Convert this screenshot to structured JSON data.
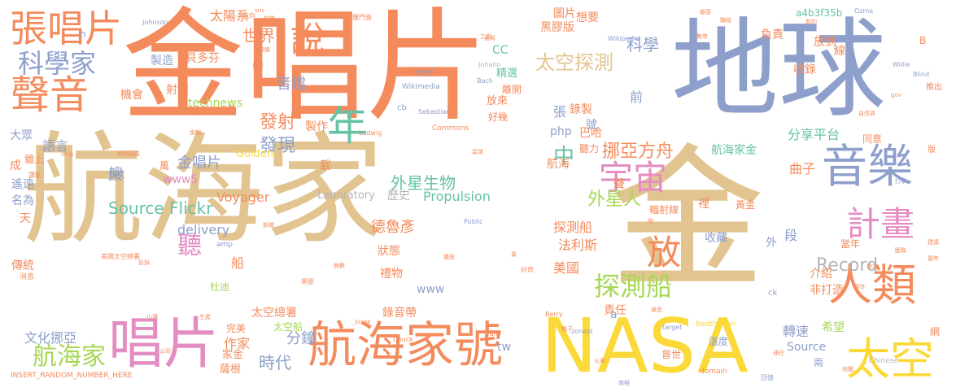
{
  "palette": {
    "orange": "#f48b5c",
    "blue": "#8e9fcb",
    "tan": "#e2c490",
    "green": "#66c2a5",
    "pink": "#e38dc2",
    "yellow": "#fbd939",
    "lime": "#a6d754",
    "gray": "#b5b5b5",
    "background": "#ffffff"
  },
  "words": [
    {
      "text": "金唱片",
      "color": "orange"
    },
    {
      "text": "地球",
      "color": "blue"
    },
    {
      "text": "航海家",
      "color": "tan"
    },
    {
      "text": "金",
      "color": "tan"
    },
    {
      "text": "NASA",
      "color": "yellow"
    },
    {
      "text": "唱片",
      "color": "pink"
    },
    {
      "text": "航海家號",
      "color": "orange"
    },
    {
      "text": "聲音",
      "color": "orange"
    },
    {
      "text": "張唱片",
      "color": "orange"
    },
    {
      "text": "音樂",
      "color": "blue"
    },
    {
      "text": "人類",
      "color": "orange"
    },
    {
      "text": "太空",
      "color": "yellow"
    },
    {
      "text": "科學家",
      "color": "blue"
    },
    {
      "text": "年",
      "color": "green"
    },
    {
      "text": "宇宙",
      "color": "pink"
    },
    {
      "text": "計畫",
      "color": "pink"
    },
    {
      "text": "放",
      "color": "orange"
    },
    {
      "text": "說",
      "color": "orange"
    },
    {
      "text": "探測船",
      "color": "lime"
    },
    {
      "text": "聽",
      "color": "pink"
    },
    {
      "text": "航海家",
      "color": "lime"
    },
    {
      "text": "太空探測",
      "color": "tan"
    },
    {
      "text": "Record",
      "color": "gray"
    },
    {
      "text": "外星人",
      "color": "lime"
    },
    {
      "text": "中",
      "color": "green"
    },
    {
      "text": "挪亞方舟",
      "color": "orange"
    },
    {
      "text": "外星生物",
      "color": "green"
    },
    {
      "text": "發射",
      "color": "orange"
    },
    {
      "text": "發現",
      "color": "blue"
    },
    {
      "text": "世界",
      "color": "orange"
    },
    {
      "text": "音檔",
      "color": "blue"
    },
    {
      "text": "科學",
      "color": "blue"
    },
    {
      "text": "Source Flickr",
      "color": "green"
    },
    {
      "text": "時代",
      "color": "blue"
    },
    {
      "text": "分鐘",
      "color": "blue"
    },
    {
      "text": "作家",
      "color": "orange"
    },
    {
      "text": "文化挪亞",
      "color": "blue"
    },
    {
      "text": "語言",
      "color": "blue"
    },
    {
      "text": "艘",
      "color": "blue"
    },
    {
      "text": "金唱片",
      "color": "blue"
    },
    {
      "text": "www5",
      "color": "pink"
    },
    {
      "text": "delivery",
      "color": "blue"
    },
    {
      "text": "Voyager",
      "color": "orange"
    },
    {
      "text": "Propulsion",
      "color": "green"
    },
    {
      "text": "Laboratory",
      "color": "gray"
    },
    {
      "text": "歷史",
      "color": "gray"
    },
    {
      "text": "德魯彥",
      "color": "orange"
    },
    {
      "text": "探測船",
      "color": "orange"
    },
    {
      "text": "法利斯",
      "color": "orange"
    },
    {
      "text": "美國",
      "color": "orange"
    },
    {
      "text": "禮物",
      "color": "orange"
    },
    {
      "text": "錄音帶",
      "color": "orange"
    },
    {
      "text": "太空總署",
      "color": "orange"
    },
    {
      "text": "太空船",
      "color": "lime"
    },
    {
      "text": "www",
      "color": "blue"
    },
    {
      "text": "technews",
      "color": "lime"
    },
    {
      "text": "太陽系",
      "color": "orange"
    },
    {
      "text": "貝多芬",
      "color": "orange"
    },
    {
      "text": "製造",
      "color": "blue"
    },
    {
      "text": "機會",
      "color": "orange"
    },
    {
      "text": "射線",
      "color": "orange"
    },
    {
      "text": "製作",
      "color": "orange"
    },
    {
      "text": "大眾",
      "color": "blue"
    },
    {
      "text": "遙遠",
      "color": "blue"
    },
    {
      "text": "名為",
      "color": "blue"
    },
    {
      "text": "傳統",
      "color": "orange"
    },
    {
      "text": "天",
      "color": "orange"
    },
    {
      "text": "Jet",
      "color": "blue"
    },
    {
      "text": "成",
      "color": "orange"
    },
    {
      "text": "鍍上",
      "color": "orange"
    },
    {
      "text": "CC",
      "color": "green"
    },
    {
      "text": "圖片",
      "color": "orange"
    },
    {
      "text": "黑膠版",
      "color": "orange"
    },
    {
      "text": "想要",
      "color": "orange"
    },
    {
      "text": "負責",
      "color": "orange"
    },
    {
      "text": "收錄",
      "color": "orange"
    },
    {
      "text": "放到",
      "color": "orange"
    },
    {
      "text": "線",
      "color": "orange"
    },
    {
      "text": "a4b3f35b",
      "color": "green"
    },
    {
      "text": "分享平台",
      "color": "green"
    },
    {
      "text": "曲子",
      "color": "orange"
    },
    {
      "text": "航海家金",
      "color": "green"
    },
    {
      "text": "同意",
      "color": "orange"
    },
    {
      "text": "巴哈",
      "color": "orange"
    },
    {
      "text": "聽力",
      "color": "orange"
    },
    {
      "text": "精選",
      "color": "green"
    },
    {
      "text": "放來",
      "color": "orange"
    },
    {
      "text": "好幾",
      "color": "orange"
    },
    {
      "text": "張",
      "color": "blue"
    },
    {
      "text": "號",
      "color": "blue"
    },
    {
      "text": "前",
      "color": "blue"
    },
    {
      "text": "離開",
      "color": "orange"
    },
    {
      "text": "php",
      "color": "blue"
    },
    {
      "text": "航海",
      "color": "orange"
    },
    {
      "text": "裡",
      "color": "orange"
    },
    {
      "text": "輻射線",
      "color": "orange"
    },
    {
      "text": "黃金",
      "color": "orange"
    },
    {
      "text": "收藏",
      "color": "blue"
    },
    {
      "text": "段",
      "color": "blue"
    },
    {
      "text": "外",
      "color": "blue"
    },
    {
      "text": "當年",
      "color": "orange"
    },
    {
      "text": "介紹",
      "color": "orange"
    },
    {
      "text": "非打造",
      "color": "orange"
    },
    {
      "text": "責任",
      "color": "orange"
    },
    {
      "text": "希望",
      "color": "lime"
    },
    {
      "text": "轉速",
      "color": "blue"
    },
    {
      "text": "Source",
      "color": "blue"
    },
    {
      "text": "溫度",
      "color": "blue"
    },
    {
      "text": "兩",
      "color": "blue"
    },
    {
      "text": "家金",
      "color": "orange"
    },
    {
      "text": "薩根",
      "color": "orange"
    },
    {
      "text": "杜迪",
      "color": "lime"
    },
    {
      "text": "狀態",
      "color": "orange"
    },
    {
      "text": "船",
      "color": "orange"
    },
    {
      "text": "tw",
      "color": "blue"
    },
    {
      "text": "Golden",
      "color": "yellow"
    },
    {
      "text": "載",
      "color": "orange"
    },
    {
      "text": "萬",
      "color": "orange"
    },
    {
      "text": "聲",
      "color": "orange"
    },
    {
      "text": "錄製",
      "color": "orange"
    },
    {
      "text": "普世",
      "color": "orange"
    },
    {
      "text": "href",
      "color": "blue"
    },
    {
      "text": "Wikimedia",
      "color": "blue"
    },
    {
      "text": "Commons",
      "color": "orange"
    },
    {
      "text": "Sebastian",
      "color": "blue"
    },
    {
      "text": "Johann",
      "color": "gray"
    },
    {
      "text": "Bach",
      "color": "blue"
    },
    {
      "text": "Ludwig",
      "color": "orange"
    },
    {
      "text": "Beethoven",
      "color": "yellow"
    },
    {
      "text": "Chinese",
      "color": "gray"
    },
    {
      "text": "Berry",
      "color": "orange"
    },
    {
      "text": "Chuck",
      "color": "orange"
    },
    {
      "text": "Wikipedia",
      "color": "blue"
    },
    {
      "text": "Johnson",
      "color": "blue"
    },
    {
      "text": "Ozma",
      "color": "blue"
    },
    {
      "text": "Willie",
      "color": "blue"
    },
    {
      "text": "Blind",
      "color": "blue"
    },
    {
      "text": "Public",
      "color": "blue"
    },
    {
      "text": "domain",
      "color": "orange"
    },
    {
      "text": "target",
      "color": "blue"
    },
    {
      "text": "_blank",
      "color": "orange"
    },
    {
      "text": "zoneid",
      "color": "blue"
    },
    {
      "text": "amp",
      "color": "blue"
    },
    {
      "text": "img",
      "color": "orange"
    },
    {
      "text": "ck",
      "color": "blue"
    },
    {
      "text": "cb",
      "color": "blue"
    },
    {
      "text": "a",
      "color": "blue"
    },
    {
      "text": "van",
      "color": "orange"
    },
    {
      "text": "B",
      "color": "orange"
    },
    {
      "text": "n",
      "color": "blue"
    },
    {
      "text": "INSERT_RANDOM_NUMBER_HERE",
      "color": "orange"
    },
    {
      "text": "美國太空總署",
      "color": "orange"
    },
    {
      "text": "消息",
      "color": "orange"
    },
    {
      "text": "小遇",
      "color": "orange"
    },
    {
      "text": "公司",
      "color": "orange"
    },
    {
      "text": "生產",
      "color": "orange"
    },
    {
      "text": "黑膠",
      "color": "orange"
    },
    {
      "text": "無數",
      "color": "orange"
    },
    {
      "text": "新聞",
      "color": "orange"
    },
    {
      "text": "播放",
      "color": "orange"
    },
    {
      "text": "好奇",
      "color": "orange"
    },
    {
      "text": "綠音",
      "color": "orange"
    },
    {
      "text": "通往",
      "color": "orange"
    },
    {
      "text": "回憶",
      "color": "blue"
    },
    {
      "text": "地圖",
      "color": "orange"
    },
    {
      "text": "火車",
      "color": "orange"
    },
    {
      "text": "打擊",
      "color": "blue"
    },
    {
      "text": "電子",
      "color": "orange"
    },
    {
      "text": "南極",
      "color": "blue"
    },
    {
      "text": "星球",
      "color": "orange"
    },
    {
      "text": "工具",
      "color": "orange"
    },
    {
      "text": "書局",
      "color": "orange"
    },
    {
      "text": "教學",
      "color": "orange"
    },
    {
      "text": "聯絡",
      "color": "orange"
    },
    {
      "text": "自然界",
      "color": "orange"
    },
    {
      "text": "網",
      "color": "orange"
    },
    {
      "text": "版",
      "color": "orange"
    },
    {
      "text": "推出",
      "color": "orange"
    },
    {
      "text": "索羅門島",
      "color": "orange"
    },
    {
      "text": "航向",
      "color": "orange"
    },
    {
      "text": "改編",
      "color": "orange"
    },
    {
      "text": "航機",
      "color": "orange"
    },
    {
      "text": "威利強森",
      "color": "orange"
    },
    {
      "text": "代表",
      "color": "orange"
    },
    {
      "text": "金剛",
      "color": "orange"
    },
    {
      "text": "告訴",
      "color": "orange"
    },
    {
      "text": "供",
      "color": "orange"
    },
    {
      "text": "最感",
      "color": "orange"
    },
    {
      "text": "旅程",
      "color": "orange"
    },
    {
      "text": "意外",
      "color": "orange"
    },
    {
      "text": "圖像",
      "color": "orange"
    },
    {
      "text": "建議",
      "color": "orange"
    },
    {
      "text": "讚歎",
      "color": "orange"
    },
    {
      "text": "完美",
      "color": "orange"
    },
    {
      "text": "學習",
      "color": "orange"
    },
    {
      "text": "嘉年",
      "color": "orange"
    },
    {
      "text": "附",
      "color": "orange"
    },
    {
      "text": "貴",
      "color": "orange"
    },
    {
      "text": "宣傳",
      "color": "orange"
    },
    {
      "text": "新的",
      "color": "orange"
    },
    {
      "text": "sric",
      "color": "orange"
    },
    {
      "text": "gov",
      "color": "orange"
    }
  ]
}
